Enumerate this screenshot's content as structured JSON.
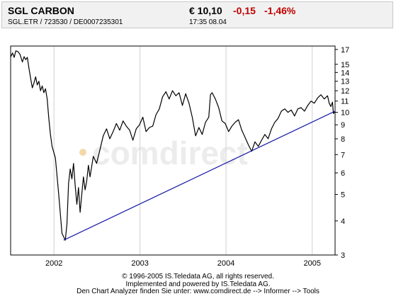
{
  "header": {
    "name": "SGL CARBON",
    "identifiers": "SGL.ETR / 723530 / DE0007235301",
    "price": "€ 10,10",
    "change": "-0,15",
    "change_pct": "-1,46%",
    "time": "17:35   08.04"
  },
  "watermark": "comdirect",
  "colors": {
    "price_line": "#000000",
    "trend_line": "#1a1aa8",
    "down": "#c00000",
    "grid": "#d0d0d0"
  },
  "chart_data": {
    "type": "line",
    "title": "",
    "xlabel": "",
    "ylabel": "",
    "y_scale": "log",
    "ylim": [
      3,
      17.5
    ],
    "xlim": [
      "2001-07-01",
      "2005-04-08"
    ],
    "x_ticks": [
      {
        "label": "2002",
        "date": "2002-01-01"
      },
      {
        "label": "2003",
        "date": "2003-01-01"
      },
      {
        "label": "2004",
        "date": "2004-01-01"
      },
      {
        "label": "2005",
        "date": "2005-01-01"
      }
    ],
    "y_ticks": [
      3,
      4,
      5,
      6,
      7,
      8,
      9,
      10,
      11,
      12,
      13,
      14,
      15,
      17
    ],
    "grid": {
      "vertical": true,
      "horizontal": false
    },
    "series": [
      {
        "values": [
          [
            "2001-07-02",
            16.0
          ],
          [
            "2001-07-09",
            16.5
          ],
          [
            "2001-07-16",
            15.9
          ],
          [
            "2001-07-23",
            16.8
          ],
          [
            "2001-08-01",
            16.7
          ],
          [
            "2001-08-10",
            16.3
          ],
          [
            "2001-08-20",
            15.3
          ],
          [
            "2001-08-27",
            16.0
          ],
          [
            "2001-09-03",
            15.6
          ],
          [
            "2001-09-10",
            15.9
          ],
          [
            "2001-09-17",
            14.5
          ],
          [
            "2001-09-24",
            13.3
          ],
          [
            "2001-10-01",
            12.3
          ],
          [
            "2001-10-08",
            12.8
          ],
          [
            "2001-10-15",
            13.5
          ],
          [
            "2001-10-22",
            12.6
          ],
          [
            "2001-10-29",
            13.0
          ],
          [
            "2001-11-05",
            12.0
          ],
          [
            "2001-11-12",
            12.5
          ],
          [
            "2001-11-19",
            11.8
          ],
          [
            "2001-11-26",
            12.2
          ],
          [
            "2001-12-03",
            11.2
          ],
          [
            "2001-12-10",
            9.5
          ],
          [
            "2001-12-17",
            8.3
          ],
          [
            "2001-12-24",
            7.5
          ],
          [
            "2002-01-07",
            6.8
          ],
          [
            "2002-01-21",
            5.0
          ],
          [
            "2002-02-04",
            3.6
          ],
          [
            "2002-02-18",
            3.4
          ],
          [
            "2002-02-25",
            3.9
          ],
          [
            "2002-03-04",
            5.5
          ],
          [
            "2002-03-11",
            6.2
          ],
          [
            "2002-03-18",
            5.7
          ],
          [
            "2002-03-25",
            6.5
          ],
          [
            "2002-04-01",
            5.4
          ],
          [
            "2002-04-08",
            4.6
          ],
          [
            "2002-04-15",
            5.3
          ],
          [
            "2002-04-22",
            4.3
          ],
          [
            "2002-04-29",
            5.0
          ],
          [
            "2002-05-06",
            5.8
          ],
          [
            "2002-05-13",
            5.2
          ],
          [
            "2002-05-20",
            5.6
          ],
          [
            "2002-05-27",
            6.4
          ],
          [
            "2002-06-03",
            5.8
          ],
          [
            "2002-06-17",
            6.9
          ],
          [
            "2002-07-01",
            6.5
          ],
          [
            "2002-07-15",
            7.3
          ],
          [
            "2002-07-29",
            8.2
          ],
          [
            "2002-08-12",
            8.7
          ],
          [
            "2002-08-26",
            8.0
          ],
          [
            "2002-09-09",
            8.5
          ],
          [
            "2002-09-23",
            9.1
          ],
          [
            "2002-10-07",
            8.6
          ],
          [
            "2002-10-21",
            9.3
          ],
          [
            "2002-11-04",
            8.9
          ],
          [
            "2002-11-18",
            8.6
          ],
          [
            "2002-12-02",
            7.9
          ],
          [
            "2002-12-16",
            8.7
          ],
          [
            "2002-12-30",
            9.0
          ],
          [
            "2003-01-13",
            9.6
          ],
          [
            "2003-01-27",
            8.5
          ],
          [
            "2003-02-10",
            8.8
          ],
          [
            "2003-02-24",
            8.9
          ],
          [
            "2003-03-10",
            9.8
          ],
          [
            "2003-03-24",
            10.3
          ],
          [
            "2003-04-07",
            11.4
          ],
          [
            "2003-04-21",
            11.9
          ],
          [
            "2003-05-05",
            11.2
          ],
          [
            "2003-05-19",
            12.0
          ],
          [
            "2003-06-02",
            11.5
          ],
          [
            "2003-06-16",
            11.8
          ],
          [
            "2003-06-30",
            10.6
          ],
          [
            "2003-07-14",
            11.7
          ],
          [
            "2003-07-28",
            10.8
          ],
          [
            "2003-08-11",
            9.6
          ],
          [
            "2003-08-25",
            8.2
          ],
          [
            "2003-09-08",
            8.8
          ],
          [
            "2003-09-22",
            8.3
          ],
          [
            "2003-10-06",
            9.2
          ],
          [
            "2003-10-20",
            9.6
          ],
          [
            "2003-10-27",
            11.6
          ],
          [
            "2003-11-03",
            11.8
          ],
          [
            "2003-11-17",
            11.2
          ],
          [
            "2003-12-01",
            10.4
          ],
          [
            "2003-12-15",
            9.3
          ],
          [
            "2003-12-29",
            9.1
          ],
          [
            "2004-01-12",
            8.5
          ],
          [
            "2004-01-26",
            8.9
          ],
          [
            "2004-02-09",
            9.2
          ],
          [
            "2004-02-23",
            9.4
          ],
          [
            "2004-03-08",
            8.6
          ],
          [
            "2004-03-22",
            8.1
          ],
          [
            "2004-04-05",
            7.6
          ],
          [
            "2004-04-19",
            7.2
          ],
          [
            "2004-05-03",
            7.8
          ],
          [
            "2004-05-17",
            7.5
          ],
          [
            "2004-05-31",
            7.9
          ],
          [
            "2004-06-14",
            8.3
          ],
          [
            "2004-06-28",
            8.0
          ],
          [
            "2004-07-12",
            8.7
          ],
          [
            "2004-07-26",
            9.2
          ],
          [
            "2004-08-09",
            9.5
          ],
          [
            "2004-08-23",
            10.1
          ],
          [
            "2004-09-06",
            10.3
          ],
          [
            "2004-09-20",
            10.0
          ],
          [
            "2004-10-04",
            10.2
          ],
          [
            "2004-10-18",
            9.7
          ],
          [
            "2004-11-01",
            10.3
          ],
          [
            "2004-11-15",
            10.4
          ],
          [
            "2004-11-29",
            10.1
          ],
          [
            "2004-12-13",
            10.6
          ],
          [
            "2004-12-27",
            11.0
          ],
          [
            "2005-01-10",
            10.8
          ],
          [
            "2005-01-24",
            11.3
          ],
          [
            "2005-02-07",
            11.6
          ],
          [
            "2005-02-21",
            11.2
          ],
          [
            "2005-03-07",
            11.5
          ],
          [
            "2005-03-14",
            10.8
          ],
          [
            "2005-03-21",
            10.5
          ],
          [
            "2005-03-28",
            10.9
          ],
          [
            "2005-04-01",
            9.9
          ],
          [
            "2005-04-08",
            10.1
          ]
        ]
      },
      {
        "values": [
          [
            "2002-02-11",
            3.4
          ],
          [
            "2005-04-08",
            10.1
          ]
        ]
      }
    ]
  },
  "footer": {
    "copyright": "© 1996-2005 IS.Teledata AG, all rights reserved.",
    "implemented": "Implemented and powered by  IS.Teledata AG.",
    "analyzer": "Den Chart Analyzer finden Sie unter: www.comdirect.de --> Informer --> Tools"
  }
}
